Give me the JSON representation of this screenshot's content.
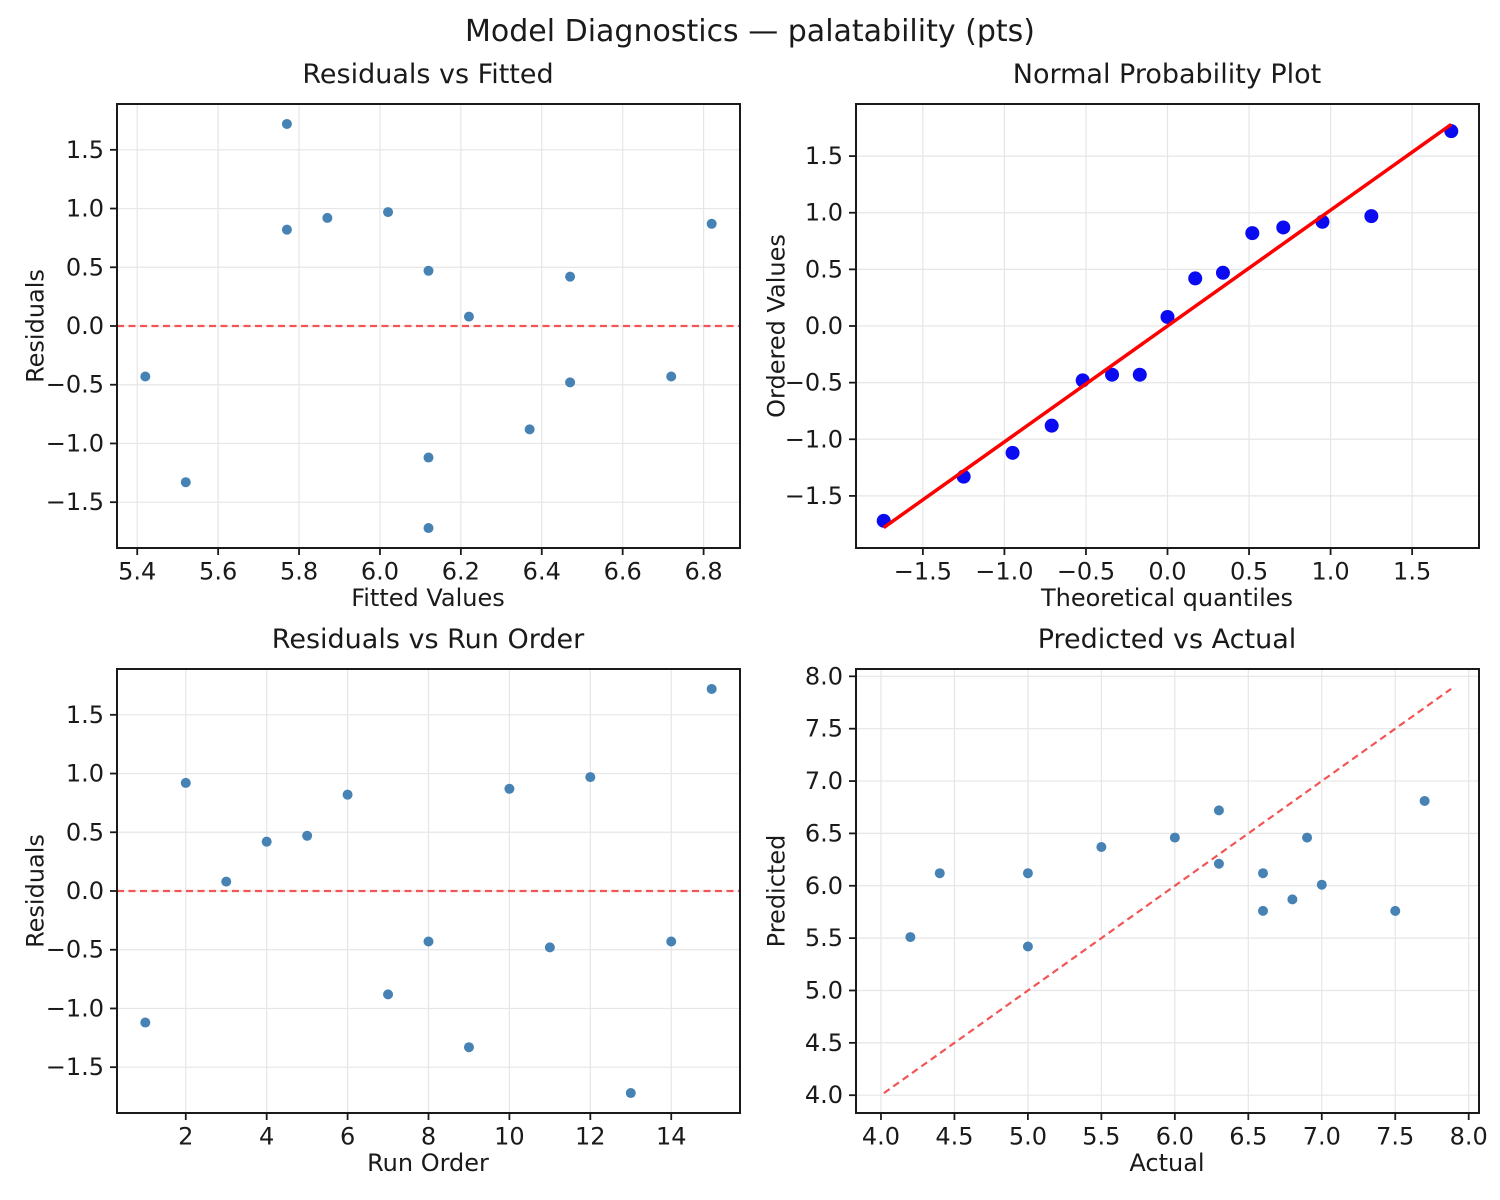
{
  "suptitle": "Model Diagnostics — palatability (pts)",
  "colors": {
    "scatter_point": "#4682B4",
    "probplot_point": "#0B0BF2",
    "fit_line": "#FF0000",
    "reference_line": "#F25555",
    "grid": "#E6E6E6",
    "spine": "#1A1A1A",
    "text": "#1A1A1A",
    "background": "#FFFFFF"
  },
  "chart_data": [
    {
      "id": "residuals-vs-fitted",
      "type": "scatter",
      "title": "Residuals vs Fitted",
      "xlabel": "Fitted Values",
      "ylabel": "Residuals",
      "xlim": [
        5.35,
        6.89
      ],
      "ylim": [
        -1.89,
        1.89
      ],
      "grid": true,
      "xticks": {
        "values": [
          5.4,
          5.6,
          5.8,
          6.0,
          6.2,
          6.4,
          6.6,
          6.8
        ],
        "labels": [
          "5.4",
          "5.6",
          "5.8",
          "6.0",
          "6.2",
          "6.4",
          "6.6",
          "6.8"
        ]
      },
      "yticks": {
        "values": [
          -1.5,
          -1.0,
          -0.5,
          0.0,
          0.5,
          1.0,
          1.5
        ],
        "labels": [
          "−1.5",
          "−1.0",
          "−0.5",
          "0.0",
          "0.5",
          "1.0",
          "1.5"
        ]
      },
      "points": [
        [
          5.42,
          -0.43
        ],
        [
          5.52,
          -1.33
        ],
        [
          5.77,
          1.72
        ],
        [
          5.77,
          0.82
        ],
        [
          5.87,
          0.92
        ],
        [
          6.02,
          0.97
        ],
        [
          6.12,
          0.47
        ],
        [
          6.12,
          -1.12
        ],
        [
          6.12,
          -1.72
        ],
        [
          6.22,
          0.08
        ],
        [
          6.37,
          -0.88
        ],
        [
          6.47,
          0.42
        ],
        [
          6.47,
          -0.48
        ],
        [
          6.72,
          -0.43
        ],
        [
          6.82,
          0.87
        ]
      ],
      "point_style": {
        "color_key": "scatter_point",
        "radius": 5
      },
      "ref_lines": [
        {
          "name": "zero-line",
          "kind": "hline",
          "y": 0,
          "color_key": "reference_line",
          "dash": true,
          "width": 2.2
        }
      ]
    },
    {
      "id": "normal-probability-plot",
      "type": "scatter",
      "title": "Normal Probability Plot",
      "xlabel": "Theoretical quantiles",
      "ylabel": "Ordered Values",
      "xlim": [
        -1.91,
        1.91
      ],
      "ylim": [
        -1.96,
        1.96
      ],
      "grid": true,
      "xticks": {
        "values": [
          -1.5,
          -1.0,
          -0.5,
          0.0,
          0.5,
          1.0,
          1.5
        ],
        "labels": [
          "−1.5",
          "−1.0",
          "−0.5",
          "0.0",
          "0.5",
          "1.0",
          "1.5"
        ]
      },
      "yticks": {
        "values": [
          -1.5,
          -1.0,
          -0.5,
          0.0,
          0.5,
          1.0,
          1.5
        ],
        "labels": [
          "−1.5",
          "−1.0",
          "−0.5",
          "0.0",
          "0.5",
          "1.0",
          "1.5"
        ]
      },
      "points": [
        [
          -1.74,
          -1.72
        ],
        [
          -1.25,
          -1.33
        ],
        [
          -0.95,
          -1.12
        ],
        [
          -0.71,
          -0.88
        ],
        [
          -0.52,
          -0.48
        ],
        [
          -0.34,
          -0.43
        ],
        [
          -0.17,
          -0.43
        ],
        [
          0.0,
          0.08
        ],
        [
          0.17,
          0.42
        ],
        [
          0.34,
          0.47
        ],
        [
          0.52,
          0.82
        ],
        [
          0.71,
          0.87
        ],
        [
          0.95,
          0.92
        ],
        [
          1.25,
          0.97
        ],
        [
          1.74,
          1.72
        ]
      ],
      "point_style": {
        "color_key": "probplot_point",
        "radius": 7
      },
      "ref_lines": [
        {
          "name": "fit-line",
          "kind": "segment",
          "x1": -1.74,
          "y1": -1.78,
          "x2": 1.74,
          "y2": 1.78,
          "color_key": "fit_line",
          "dash": false,
          "width": 3.5
        }
      ]
    },
    {
      "id": "residuals-vs-run-order",
      "type": "scatter",
      "title": "Residuals vs Run Order",
      "xlabel": "Run Order",
      "ylabel": "Residuals",
      "xlim": [
        0.3,
        15.7
      ],
      "ylim": [
        -1.89,
        1.89
      ],
      "grid": true,
      "xticks": {
        "values": [
          2,
          4,
          6,
          8,
          10,
          12,
          14
        ],
        "labels": [
          "2",
          "4",
          "6",
          "8",
          "10",
          "12",
          "14"
        ]
      },
      "yticks": {
        "values": [
          -1.5,
          -1.0,
          -0.5,
          0.0,
          0.5,
          1.0,
          1.5
        ],
        "labels": [
          "−1.5",
          "−1.0",
          "−0.5",
          "0.0",
          "0.5",
          "1.0",
          "1.5"
        ]
      },
      "points": [
        [
          1,
          -1.12
        ],
        [
          2,
          0.92
        ],
        [
          3,
          0.08
        ],
        [
          4,
          0.42
        ],
        [
          5,
          0.47
        ],
        [
          6,
          0.82
        ],
        [
          7,
          -0.88
        ],
        [
          8,
          -0.43
        ],
        [
          9,
          -1.33
        ],
        [
          10,
          0.87
        ],
        [
          11,
          -0.48
        ],
        [
          12,
          0.97
        ],
        [
          13,
          -1.72
        ],
        [
          14,
          -0.43
        ],
        [
          15,
          1.72
        ]
      ],
      "point_style": {
        "color_key": "scatter_point",
        "radius": 5
      },
      "ref_lines": [
        {
          "name": "zero-line",
          "kind": "hline",
          "y": 0,
          "color_key": "reference_line",
          "dash": true,
          "width": 2.2
        }
      ]
    },
    {
      "id": "predicted-vs-actual",
      "type": "scatter",
      "title": "Predicted vs Actual",
      "xlabel": "Actual",
      "ylabel": "Predicted",
      "xlim": [
        3.83,
        8.07
      ],
      "ylim": [
        3.83,
        8.07
      ],
      "grid": true,
      "xticks": {
        "values": [
          4.0,
          4.5,
          5.0,
          5.5,
          6.0,
          6.5,
          7.0,
          7.5,
          8.0
        ],
        "labels": [
          "4.0",
          "4.5",
          "5.0",
          "5.5",
          "6.0",
          "6.5",
          "7.0",
          "7.5",
          "8.0"
        ]
      },
      "yticks": {
        "values": [
          4.0,
          4.5,
          5.0,
          5.5,
          6.0,
          6.5,
          7.0,
          7.5,
          8.0
        ],
        "labels": [
          "4.0",
          "4.5",
          "5.0",
          "5.5",
          "6.0",
          "6.5",
          "7.0",
          "7.5",
          "8.0"
        ]
      },
      "points": [
        [
          4.2,
          5.51
        ],
        [
          4.4,
          6.12
        ],
        [
          5.0,
          6.12
        ],
        [
          5.0,
          5.42
        ],
        [
          5.5,
          6.37
        ],
        [
          6.0,
          6.46
        ],
        [
          6.3,
          6.72
        ],
        [
          6.3,
          6.21
        ],
        [
          6.6,
          6.12
        ],
        [
          6.6,
          5.76
        ],
        [
          6.8,
          5.87
        ],
        [
          6.9,
          6.46
        ],
        [
          7.0,
          6.01
        ],
        [
          7.5,
          5.76
        ],
        [
          7.7,
          6.81
        ]
      ],
      "point_style": {
        "color_key": "scatter_point",
        "radius": 5
      },
      "ref_lines": [
        {
          "name": "identity-line",
          "kind": "segment",
          "x1": 4.02,
          "y1": 4.02,
          "x2": 7.88,
          "y2": 7.88,
          "color_key": "reference_line",
          "dash": true,
          "width": 2.2
        }
      ]
    }
  ]
}
